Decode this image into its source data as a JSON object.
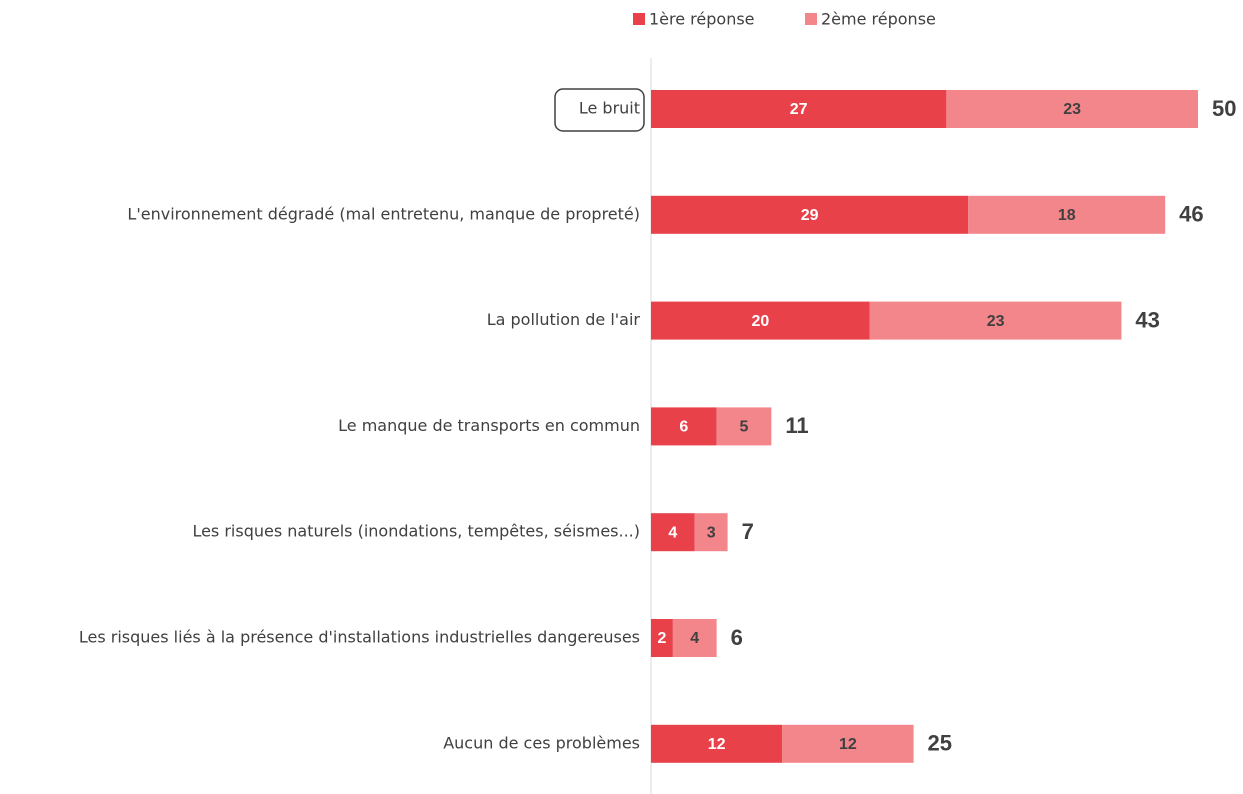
{
  "chart_data": {
    "type": "stacked-barh",
    "categories": [
      "Le bruit",
      "L'environnement dégradé (mal entretenu, manque de propreté)",
      "La pollution de l'air",
      "Le manque de transports en commun",
      "Les risques naturels (inondations, tempêtes, séismes...)",
      "Les risques liés à la présence d'installations industrielles dangereuses",
      "Aucun de ces problèmes"
    ],
    "series": [
      {
        "name": "1ère réponse",
        "color": "#e8414a",
        "values": [
          27,
          29,
          20,
          6,
          4,
          2,
          12
        ]
      },
      {
        "name": "2ème réponse",
        "color": "#f2868a",
        "values": [
          23,
          18,
          23,
          5,
          3,
          4,
          12
        ]
      }
    ],
    "totals": [
      50,
      46,
      43,
      11,
      7,
      6,
      25
    ],
    "legend": "top"
  }
}
